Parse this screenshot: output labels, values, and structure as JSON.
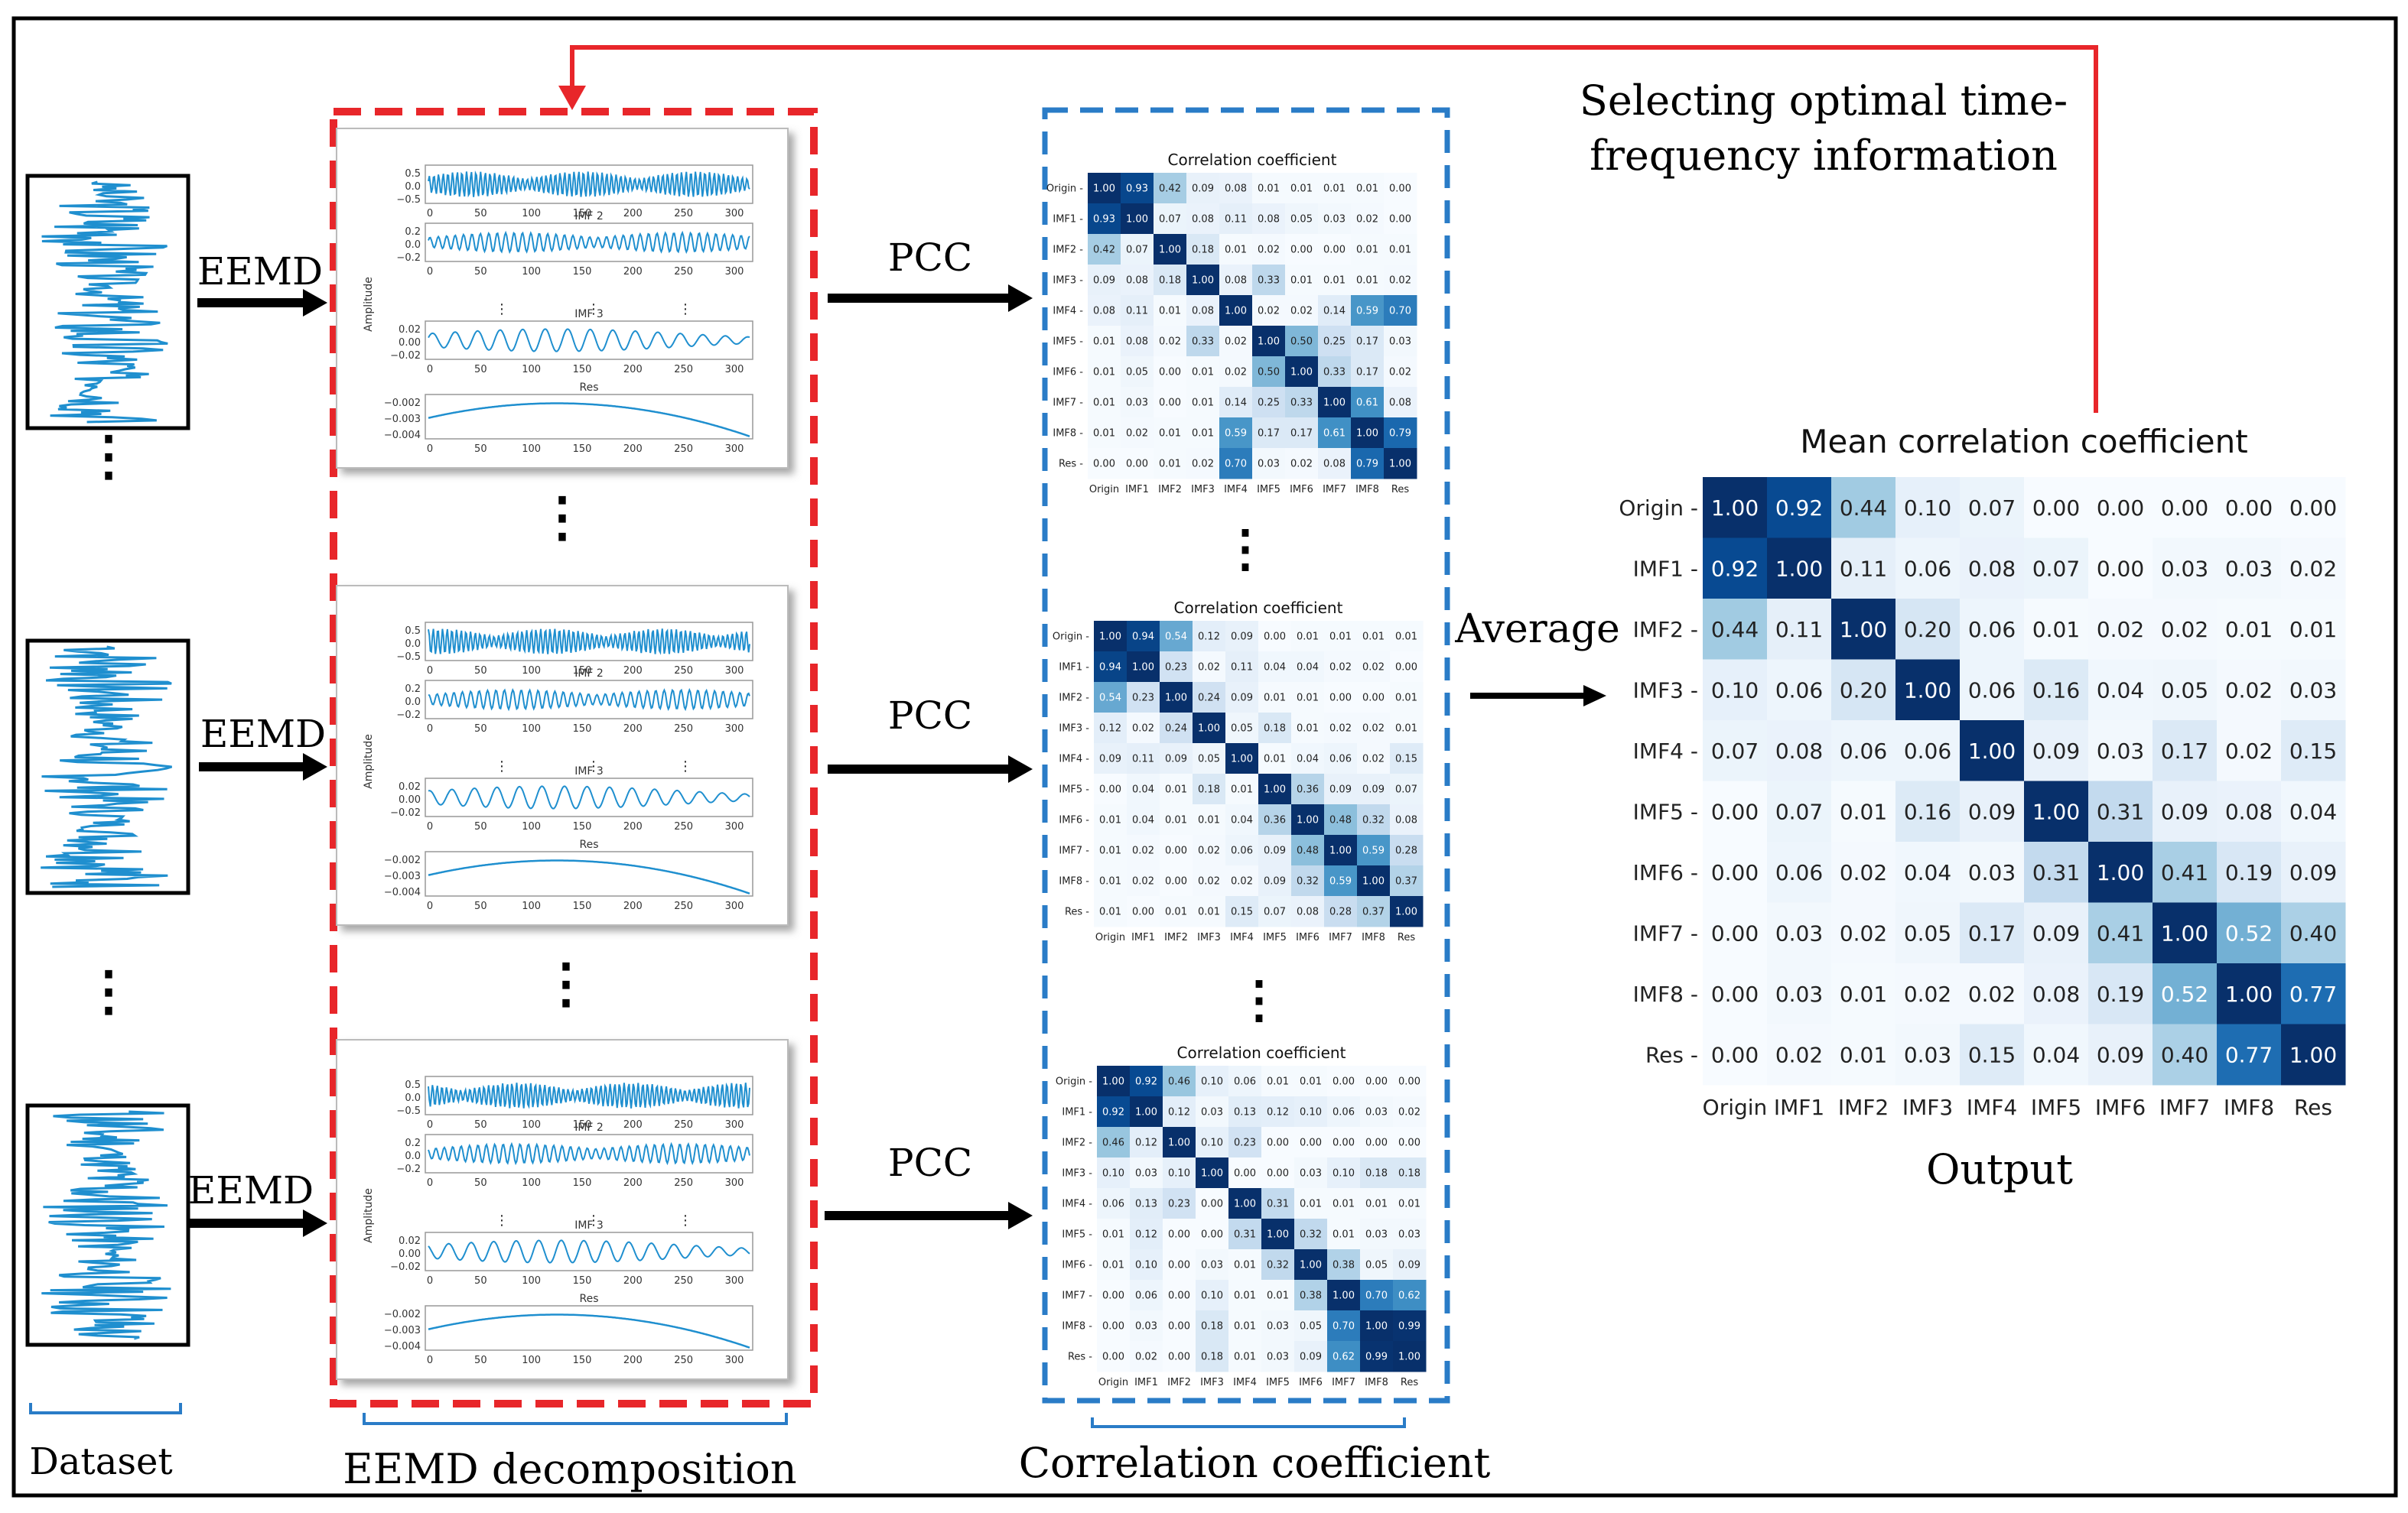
{
  "labels": {
    "eemd": "EEMD",
    "pcc": "PCC",
    "average": "Average",
    "selecting_line1": "Selecting optimal time-",
    "selecting_line2": "frequency information",
    "dataset": "Dataset",
    "eemd_decomposition": "EEMD decomposition",
    "correlation_coefficient": "Correlation coefficient",
    "output": "Output",
    "dots": "⋮"
  },
  "decomp_plot": {
    "imf2_title": "IMF 2",
    "imf3_title": "IMF 3",
    "res_title": "Res",
    "ylabel": "Amplitude",
    "origin_ticks": [
      "0.5",
      "0.0",
      "−0.5"
    ],
    "imf2_ticks": [
      "0.2",
      "0.0",
      "−0.2"
    ],
    "imf3_ticks": [
      "0.02",
      "0.00",
      "−0.02"
    ],
    "res_ticks": [
      "−0.002",
      "−0.003",
      "−0.004"
    ],
    "x_ticks": [
      "0",
      "50",
      "100",
      "150",
      "200",
      "250",
      "300"
    ]
  },
  "colors": {
    "red": "#e8262a",
    "blue": "#2a7cc7",
    "signal": "#1f8fcf",
    "heat_low": "#f7fbff",
    "heat_high": "#08306b"
  },
  "chart_data": [
    {
      "type": "heatmap",
      "title": "Correlation coefficient",
      "labels": [
        "Origin",
        "IMF1",
        "IMF2",
        "IMF3",
        "IMF4",
        "IMF5",
        "IMF6",
        "IMF7",
        "IMF8",
        "Res"
      ],
      "values": [
        [
          1.0,
          0.93,
          0.42,
          0.09,
          0.08,
          0.01,
          0.01,
          0.01,
          0.01,
          0.0
        ],
        [
          0.93,
          1.0,
          0.07,
          0.08,
          0.11,
          0.08,
          0.05,
          0.03,
          0.02,
          0.0
        ],
        [
          0.42,
          0.07,
          1.0,
          0.18,
          0.01,
          0.02,
          0.0,
          0.0,
          0.01,
          0.01
        ],
        [
          0.09,
          0.08,
          0.18,
          1.0,
          0.08,
          0.33,
          0.01,
          0.01,
          0.01,
          0.02
        ],
        [
          0.08,
          0.11,
          0.01,
          0.08,
          1.0,
          0.02,
          0.02,
          0.14,
          0.59,
          0.7
        ],
        [
          0.01,
          0.08,
          0.02,
          0.33,
          0.02,
          1.0,
          0.5,
          0.25,
          0.17,
          0.03
        ],
        [
          0.01,
          0.05,
          0.0,
          0.01,
          0.02,
          0.5,
          1.0,
          0.33,
          0.17,
          0.02
        ],
        [
          0.01,
          0.03,
          0.0,
          0.01,
          0.14,
          0.25,
          0.33,
          1.0,
          0.61,
          0.08
        ],
        [
          0.01,
          0.02,
          0.01,
          0.01,
          0.59,
          0.17,
          0.17,
          0.61,
          1.0,
          0.79
        ],
        [
          0.0,
          0.0,
          0.01,
          0.02,
          0.7,
          0.03,
          0.02,
          0.08,
          0.79,
          1.0
        ]
      ]
    },
    {
      "type": "heatmap",
      "title": "Correlation coefficient",
      "labels": [
        "Origin",
        "IMF1",
        "IMF2",
        "IMF3",
        "IMF4",
        "IMF5",
        "IMF6",
        "IMF7",
        "IMF8",
        "Res"
      ],
      "values": [
        [
          1.0,
          0.94,
          0.54,
          0.12,
          0.09,
          0.0,
          0.01,
          0.01,
          0.01,
          0.01
        ],
        [
          0.94,
          1.0,
          0.23,
          0.02,
          0.11,
          0.04,
          0.04,
          0.02,
          0.02,
          0.0
        ],
        [
          0.54,
          0.23,
          1.0,
          0.24,
          0.09,
          0.01,
          0.01,
          0.0,
          0.0,
          0.01
        ],
        [
          0.12,
          0.02,
          0.24,
          1.0,
          0.05,
          0.18,
          0.01,
          0.02,
          0.02,
          0.01
        ],
        [
          0.09,
          0.11,
          0.09,
          0.05,
          1.0,
          0.01,
          0.04,
          0.06,
          0.02,
          0.15
        ],
        [
          0.0,
          0.04,
          0.01,
          0.18,
          0.01,
          1.0,
          0.36,
          0.09,
          0.09,
          0.07
        ],
        [
          0.01,
          0.04,
          0.01,
          0.01,
          0.04,
          0.36,
          1.0,
          0.48,
          0.32,
          0.08
        ],
        [
          0.01,
          0.02,
          0.0,
          0.02,
          0.06,
          0.09,
          0.48,
          1.0,
          0.59,
          0.28
        ],
        [
          0.01,
          0.02,
          0.0,
          0.02,
          0.02,
          0.09,
          0.32,
          0.59,
          1.0,
          0.37
        ],
        [
          0.01,
          0.0,
          0.01,
          0.01,
          0.15,
          0.07,
          0.08,
          0.28,
          0.37,
          1.0
        ]
      ]
    },
    {
      "type": "heatmap",
      "title": "Correlation coefficient",
      "labels": [
        "Origin",
        "IMF1",
        "IMF2",
        "IMF3",
        "IMF4",
        "IMF5",
        "IMF6",
        "IMF7",
        "IMF8",
        "Res"
      ],
      "values": [
        [
          1.0,
          0.92,
          0.46,
          0.1,
          0.06,
          0.01,
          0.01,
          0.0,
          0.0,
          0.0
        ],
        [
          0.92,
          1.0,
          0.12,
          0.03,
          0.13,
          0.12,
          0.1,
          0.06,
          0.03,
          0.02
        ],
        [
          0.46,
          0.12,
          1.0,
          0.1,
          0.23,
          0.0,
          0.0,
          0.0,
          0.0,
          0.0
        ],
        [
          0.1,
          0.03,
          0.1,
          1.0,
          0.0,
          0.0,
          0.03,
          0.1,
          0.18,
          0.18
        ],
        [
          0.06,
          0.13,
          0.23,
          0.0,
          1.0,
          0.31,
          0.01,
          0.01,
          0.01,
          0.01
        ],
        [
          0.01,
          0.12,
          0.0,
          0.0,
          0.31,
          1.0,
          0.32,
          0.01,
          0.03,
          0.03
        ],
        [
          0.01,
          0.1,
          0.0,
          0.03,
          0.01,
          0.32,
          1.0,
          0.38,
          0.05,
          0.09
        ],
        [
          0.0,
          0.06,
          0.0,
          0.1,
          0.01,
          0.01,
          0.38,
          1.0,
          0.7,
          0.62
        ],
        [
          0.0,
          0.03,
          0.0,
          0.18,
          0.01,
          0.03,
          0.05,
          0.7,
          1.0,
          0.99
        ],
        [
          0.0,
          0.02,
          0.0,
          0.18,
          0.01,
          0.03,
          0.09,
          0.62,
          0.99,
          1.0
        ]
      ]
    },
    {
      "type": "heatmap",
      "title": "Mean correlation coefficient",
      "labels": [
        "Origin",
        "IMF1",
        "IMF2",
        "IMF3",
        "IMF4",
        "IMF5",
        "IMF6",
        "IMF7",
        "IMF8",
        "Res"
      ],
      "values": [
        [
          1.0,
          0.92,
          0.44,
          0.1,
          0.07,
          0.0,
          0.0,
          0.0,
          0.0,
          0.0
        ],
        [
          0.92,
          1.0,
          0.11,
          0.06,
          0.08,
          0.07,
          0.0,
          0.03,
          0.03,
          0.02
        ],
        [
          0.44,
          0.11,
          1.0,
          0.2,
          0.06,
          0.01,
          0.02,
          0.02,
          0.01,
          0.01
        ],
        [
          0.1,
          0.06,
          0.2,
          1.0,
          0.06,
          0.16,
          0.04,
          0.05,
          0.02,
          0.03
        ],
        [
          0.07,
          0.08,
          0.06,
          0.06,
          1.0,
          0.09,
          0.03,
          0.17,
          0.02,
          0.15
        ],
        [
          0.0,
          0.07,
          0.01,
          0.16,
          0.09,
          1.0,
          0.31,
          0.09,
          0.08,
          0.04
        ],
        [
          0.0,
          0.06,
          0.02,
          0.04,
          0.03,
          0.31,
          1.0,
          0.41,
          0.19,
          0.09
        ],
        [
          0.0,
          0.03,
          0.02,
          0.05,
          0.17,
          0.09,
          0.41,
          1.0,
          0.52,
          0.4
        ],
        [
          0.0,
          0.03,
          0.01,
          0.02,
          0.02,
          0.08,
          0.19,
          0.52,
          1.0,
          0.77
        ],
        [
          0.0,
          0.02,
          0.01,
          0.03,
          0.15,
          0.04,
          0.09,
          0.4,
          0.77,
          1.0
        ]
      ]
    }
  ]
}
